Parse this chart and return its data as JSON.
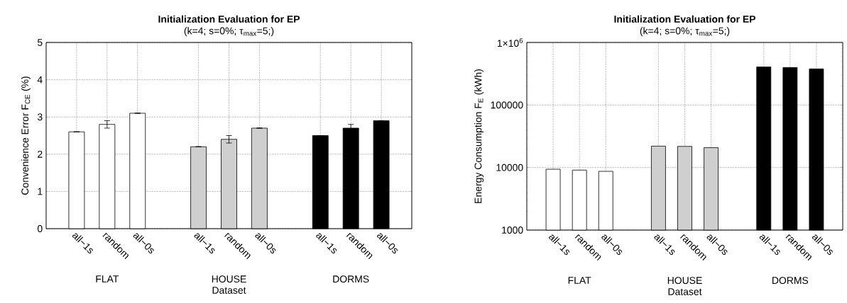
{
  "chart_data": [
    {
      "type": "bar",
      "title": "**Initialization Evaluation for EP**",
      "subtitle": "(k=4; s=0%; τ$_{max}$=5;)",
      "xlabel": "Dataset",
      "ylabel": "Convenience Error F$_{CE}$ (%)",
      "categories": [
        "all−1s",
        "random",
        "all−0s",
        null,
        "all−1s",
        "random",
        "all−0s",
        null,
        "all−1s",
        "random",
        "all−0s"
      ],
      "series": [
        {
          "color": "#ffffff",
          "values": [
            2.6,
            2.8,
            3.1,
            null,
            null,
            null,
            null,
            null,
            null,
            null,
            null
          ],
          "errors": [
            null,
            0.1,
            null,
            null,
            null,
            null,
            null,
            null,
            null,
            null,
            null
          ]
        },
        {
          "color": "#cfcfcf",
          "values": [
            null,
            null,
            null,
            null,
            2.2,
            2.4,
            2.7,
            null,
            null,
            null,
            null
          ],
          "errors": [
            null,
            null,
            null,
            null,
            null,
            0.1,
            null,
            null,
            null,
            null,
            null
          ]
        },
        {
          "color": "#000000",
          "values": [
            null,
            null,
            null,
            null,
            null,
            null,
            null,
            null,
            2.5,
            2.7,
            2.9
          ],
          "errors": [
            null,
            null,
            null,
            null,
            null,
            null,
            null,
            null,
            null,
            0.1,
            null
          ]
        }
      ],
      "annotations": [
        "FLAT",
        "HOUSE",
        "DORMS"
      ],
      "ylim": [
        0,
        5
      ],
      "yticks": [
        0,
        1,
        2,
        3,
        4,
        5
      ],
      "grid": true
    },
    {
      "type": "bar",
      "title": "**Initialization Evaluation for EP**",
      "subtitle": "(k=4; s=0%; τ$_{max}$=5;)",
      "xlabel": "Dataset",
      "ylabel": "Energy Consumption F$_{E}$ (kWh)",
      "categories": [
        "all−1s",
        "random",
        "all−0s",
        null,
        "all−1s",
        "random",
        "all−0s",
        null,
        "all−1s",
        "random",
        "all−0s"
      ],
      "series": [
        {
          "color": "#ffffff",
          "values": [
            9400,
            9100,
            8700,
            null,
            null,
            null,
            null,
            null,
            null,
            null,
            null
          ]
        },
        {
          "color": "#cfcfcf",
          "values": [
            null,
            null,
            null,
            null,
            22000,
            21800,
            20800,
            null,
            null,
            null,
            null
          ]
        },
        {
          "color": "#000000",
          "values": [
            null,
            null,
            null,
            null,
            null,
            null,
            null,
            null,
            406000,
            398000,
            378000
          ]
        }
      ],
      "annotations": [
        "FLAT",
        "HOUSE",
        "DORMS"
      ],
      "log": "y",
      "ylim": [
        1000,
        1000000
      ],
      "yticks": [
        1000,
        10000,
        100000,
        {
          "value": 1000000,
          "label": "1×10$^{6}$"
        }
      ],
      "grid": true
    }
  ]
}
